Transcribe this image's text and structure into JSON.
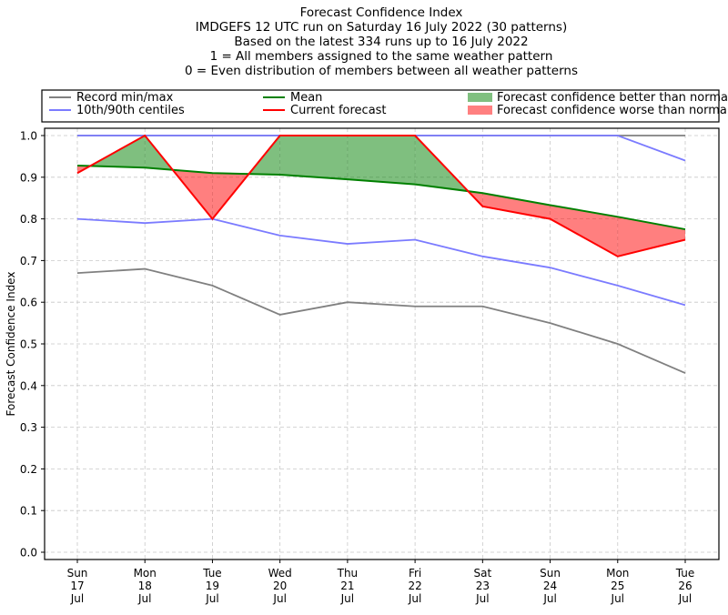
{
  "title_lines": [
    "Forecast Confidence Index",
    "IMDGEFS 12 UTC run on Saturday 16 July 2022 (30 patterns)",
    "Based on the latest 334 runs up to 16 July 2022",
    "1 = All members assigned to the same weather pattern",
    "0 = Even distribution of members between all weather patterns"
  ],
  "chart_data": {
    "type": "line",
    "ylabel": "Forecast Confidence Index",
    "ylim": [
      0.0,
      1.0
    ],
    "y_ticks": [
      "0.0",
      "0.1",
      "0.2",
      "0.3",
      "0.4",
      "0.5",
      "0.6",
      "0.7",
      "0.8",
      "0.9",
      "1.0"
    ],
    "categories": [
      [
        "Sun",
        "17",
        "Jul"
      ],
      [
        "Mon",
        "18",
        "Jul"
      ],
      [
        "Tue",
        "19",
        "Jul"
      ],
      [
        "Wed",
        "20",
        "Jul"
      ],
      [
        "Thu",
        "21",
        "Jul"
      ],
      [
        "Fri",
        "22",
        "Jul"
      ],
      [
        "Sat",
        "23",
        "Jul"
      ],
      [
        "Sun",
        "24",
        "Jul"
      ],
      [
        "Mon",
        "25",
        "Jul"
      ],
      [
        "Tue",
        "26",
        "Jul"
      ]
    ],
    "grid": true,
    "legend_position": "top",
    "series": [
      {
        "name": "Record min/max",
        "role": "record_max",
        "color": "#808080",
        "values": [
          1.0,
          1.0,
          1.0,
          1.0,
          1.0,
          1.0,
          1.0,
          1.0,
          1.0,
          1.0
        ]
      },
      {
        "name": "Record min/max",
        "role": "record_min",
        "color": "#808080",
        "values": [
          0.67,
          0.68,
          0.64,
          0.57,
          0.6,
          0.59,
          0.59,
          0.55,
          0.5,
          0.43
        ]
      },
      {
        "name": "10th/90th centiles",
        "role": "p90",
        "color": "#7b7bff",
        "values": [
          1.0,
          1.0,
          1.0,
          1.0,
          1.0,
          1.0,
          1.0,
          1.0,
          1.0,
          0.94
        ]
      },
      {
        "name": "10th/90th centiles",
        "role": "p10",
        "color": "#7b7bff",
        "values": [
          0.8,
          0.79,
          0.8,
          0.76,
          0.74,
          0.75,
          0.71,
          0.683,
          0.64,
          0.593
        ]
      },
      {
        "name": "Mean",
        "role": "mean",
        "color": "#008000",
        "values": [
          0.928,
          0.923,
          0.91,
          0.906,
          0.895,
          0.883,
          0.862,
          0.833,
          0.805,
          0.775
        ]
      },
      {
        "name": "Current forecast",
        "role": "current",
        "color": "#ff0000",
        "values": [
          0.91,
          1.0,
          0.8,
          1.0,
          1.0,
          1.0,
          0.83,
          0.8,
          0.71,
          0.75
        ]
      }
    ],
    "fills": {
      "better": {
        "color": "#008000",
        "opacity": 0.5
      },
      "worse": {
        "color": "#ff0000",
        "opacity": 0.5
      }
    },
    "legend": [
      {
        "label": "Record min/max",
        "kind": "line",
        "color": "#808080"
      },
      {
        "label": "10th/90th centiles",
        "kind": "line",
        "color": "#7b7bff"
      },
      {
        "label": "Mean",
        "kind": "line",
        "color": "#008000"
      },
      {
        "label": "Current forecast",
        "kind": "line",
        "color": "#ff0000"
      },
      {
        "label": "Forecast confidence better than normal",
        "kind": "patch",
        "color": "#80c080"
      },
      {
        "label": "Forecast confidence worse than normal",
        "kind": "patch",
        "color": "#ff8080"
      }
    ]
  }
}
